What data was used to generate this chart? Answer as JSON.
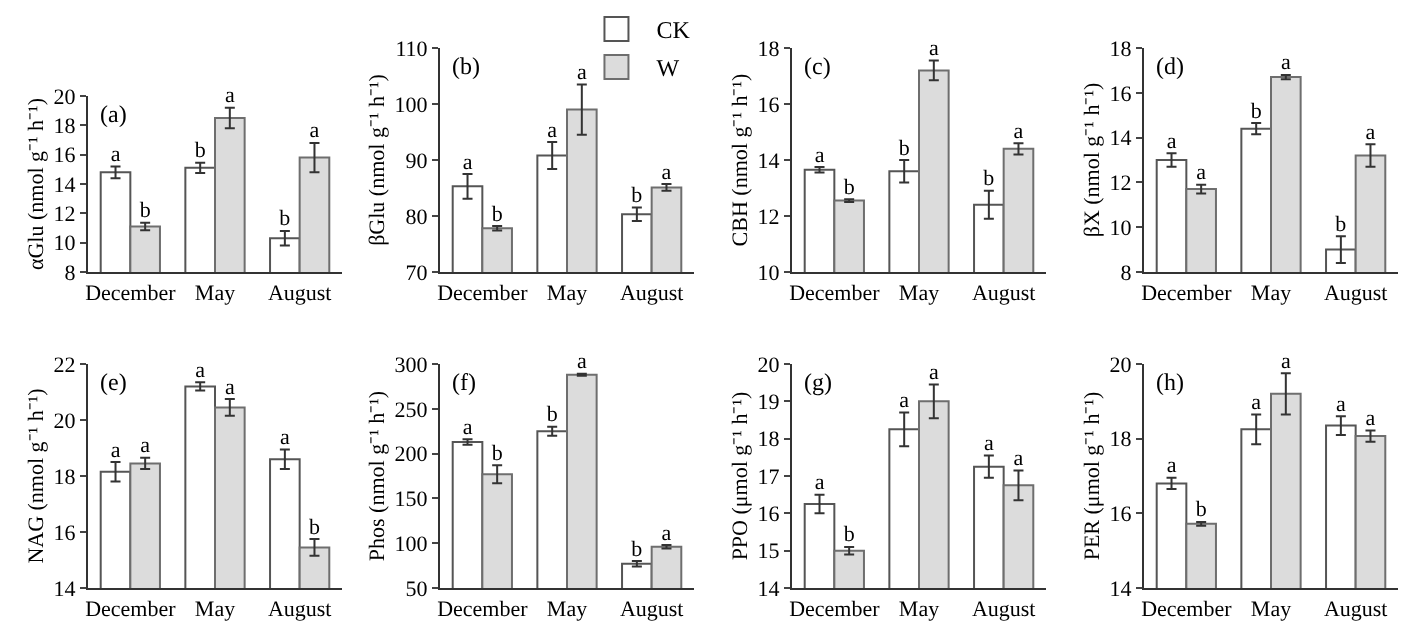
{
  "chart_data": [
    {
      "type": "bar",
      "annotations": [
        "(a)"
      ],
      "ylabel": "αGlu (nmol g⁻¹ h⁻¹)",
      "categories": [
        "December",
        "May",
        "August"
      ],
      "ylim": [
        8,
        20
      ],
      "yticks": [
        8,
        10,
        12,
        14,
        16,
        18,
        20
      ],
      "legend": "top",
      "series": [
        {
          "name": "CK",
          "color": "#ffffff",
          "values": [
            14.8,
            15.1,
            10.3
          ],
          "errors": [
            0.4,
            0.35,
            0.5
          ],
          "value_labels": [
            "a",
            "b",
            "b"
          ]
        },
        {
          "name": "W",
          "color": "#dcdcdc",
          "values": [
            11.1,
            18.5,
            15.8
          ],
          "errors": [
            0.25,
            0.7,
            1.0
          ],
          "value_labels": [
            "b",
            "a",
            "a"
          ]
        }
      ]
    },
    {
      "type": "bar",
      "annotations": [
        "(b)"
      ],
      "ylabel": "βGlu (nmol g⁻¹ h⁻¹)",
      "categories": [
        "December",
        "May",
        "August"
      ],
      "ylim": [
        70,
        110
      ],
      "yticks": [
        70,
        80,
        90,
        100,
        110
      ],
      "series": [
        {
          "color": "#ffffff",
          "values": [
            85.3,
            90.8,
            80.3
          ],
          "errors": [
            2.2,
            2.4,
            1.2
          ],
          "value_labels": [
            "a",
            "a",
            "b"
          ]
        },
        {
          "color": "#dcdcdc",
          "values": [
            77.8,
            99.0,
            85.1
          ],
          "errors": [
            0.4,
            4.5,
            0.6
          ],
          "value_labels": [
            "b",
            "a",
            "a"
          ]
        }
      ]
    },
    {
      "type": "bar",
      "annotations": [
        "(c)"
      ],
      "ylabel": "CBH (nmol g⁻¹ h⁻¹)",
      "categories": [
        "December",
        "May",
        "August"
      ],
      "ylim": [
        10,
        18
      ],
      "yticks": [
        10,
        12,
        14,
        16,
        18
      ],
      "series": [
        {
          "color": "#ffffff",
          "values": [
            13.65,
            13.6,
            12.4
          ],
          "errors": [
            0.1,
            0.4,
            0.5
          ],
          "value_labels": [
            "a",
            "b",
            "b"
          ]
        },
        {
          "color": "#dcdcdc",
          "values": [
            12.55,
            17.2,
            14.4
          ],
          "errors": [
            0.05,
            0.35,
            0.2
          ],
          "value_labels": [
            "b",
            "a",
            "a"
          ]
        }
      ]
    },
    {
      "type": "bar",
      "annotations": [
        "(d)"
      ],
      "ylabel": "βX (nmol g⁻¹ h⁻¹)",
      "categories": [
        "December",
        "May",
        "August"
      ],
      "ylim": [
        8,
        18
      ],
      "yticks": [
        8,
        10,
        12,
        14,
        16,
        18
      ],
      "series": [
        {
          "color": "#ffffff",
          "values": [
            13.0,
            14.4,
            9.0
          ],
          "errors": [
            0.3,
            0.25,
            0.6
          ],
          "value_labels": [
            "a",
            "b",
            "b"
          ]
        },
        {
          "color": "#dcdcdc",
          "values": [
            11.7,
            16.7,
            13.2
          ],
          "errors": [
            0.2,
            0.1,
            0.5
          ],
          "value_labels": [
            "a",
            "a",
            "a"
          ]
        }
      ]
    },
    {
      "type": "bar",
      "annotations": [
        "(e)"
      ],
      "ylabel": "NAG (nmol g⁻¹ h⁻¹)",
      "categories": [
        "December",
        "May",
        "August"
      ],
      "ylim": [
        14,
        22
      ],
      "yticks": [
        14,
        16,
        18,
        20,
        22
      ],
      "series": [
        {
          "color": "#ffffff",
          "values": [
            18.15,
            21.2,
            18.6
          ],
          "errors": [
            0.35,
            0.15,
            0.35
          ],
          "value_labels": [
            "a",
            "a",
            "a"
          ]
        },
        {
          "color": "#dcdcdc",
          "values": [
            18.45,
            20.45,
            15.45
          ],
          "errors": [
            0.2,
            0.3,
            0.3
          ],
          "value_labels": [
            "a",
            "a",
            "b"
          ]
        }
      ]
    },
    {
      "type": "bar",
      "annotations": [
        "(f)"
      ],
      "ylabel": "Phos (nmol g⁻¹ h⁻¹)",
      "categories": [
        "December",
        "May",
        "August"
      ],
      "ylim": [
        50,
        300
      ],
      "yticks": [
        50,
        100,
        150,
        200,
        250,
        300
      ],
      "series": [
        {
          "color": "#ffffff",
          "values": [
            213,
            225,
            77
          ],
          "errors": [
            3,
            5,
            3
          ],
          "value_labels": [
            "a",
            "b",
            "b"
          ]
        },
        {
          "color": "#dcdcdc",
          "values": [
            177,
            288,
            96
          ],
          "errors": [
            10,
            1,
            2
          ],
          "value_labels": [
            "b",
            "a",
            "a"
          ]
        }
      ]
    },
    {
      "type": "bar",
      "annotations": [
        "(g)"
      ],
      "ylabel": "PPO (μmol g⁻¹ h⁻¹)",
      "categories": [
        "December",
        "May",
        "August"
      ],
      "ylim": [
        14,
        20
      ],
      "yticks": [
        14,
        15,
        16,
        17,
        18,
        19,
        20
      ],
      "series": [
        {
          "color": "#ffffff",
          "values": [
            16.25,
            18.25,
            17.25
          ],
          "errors": [
            0.25,
            0.45,
            0.3
          ],
          "value_labels": [
            "a",
            "a",
            "a"
          ]
        },
        {
          "color": "#dcdcdc",
          "values": [
            15.0,
            19.0,
            16.75
          ],
          "errors": [
            0.1,
            0.45,
            0.4
          ],
          "value_labels": [
            "b",
            "a",
            "a"
          ]
        }
      ]
    },
    {
      "type": "bar",
      "annotations": [
        "(h)"
      ],
      "ylabel": "PER (μmol g⁻¹ h⁻¹)",
      "categories": [
        "December",
        "May",
        "August"
      ],
      "ylim": [
        14,
        20
      ],
      "yticks": [
        14,
        16,
        18,
        20
      ],
      "series": [
        {
          "color": "#ffffff",
          "values": [
            16.8,
            18.25,
            18.35
          ],
          "errors": [
            0.15,
            0.4,
            0.25
          ],
          "value_labels": [
            "a",
            "a",
            "a"
          ]
        },
        {
          "color": "#dcdcdc",
          "values": [
            15.72,
            19.2,
            18.07
          ],
          "errors": [
            0.05,
            0.55,
            0.15
          ],
          "value_labels": [
            "b",
            "a",
            "a"
          ]
        }
      ]
    }
  ]
}
